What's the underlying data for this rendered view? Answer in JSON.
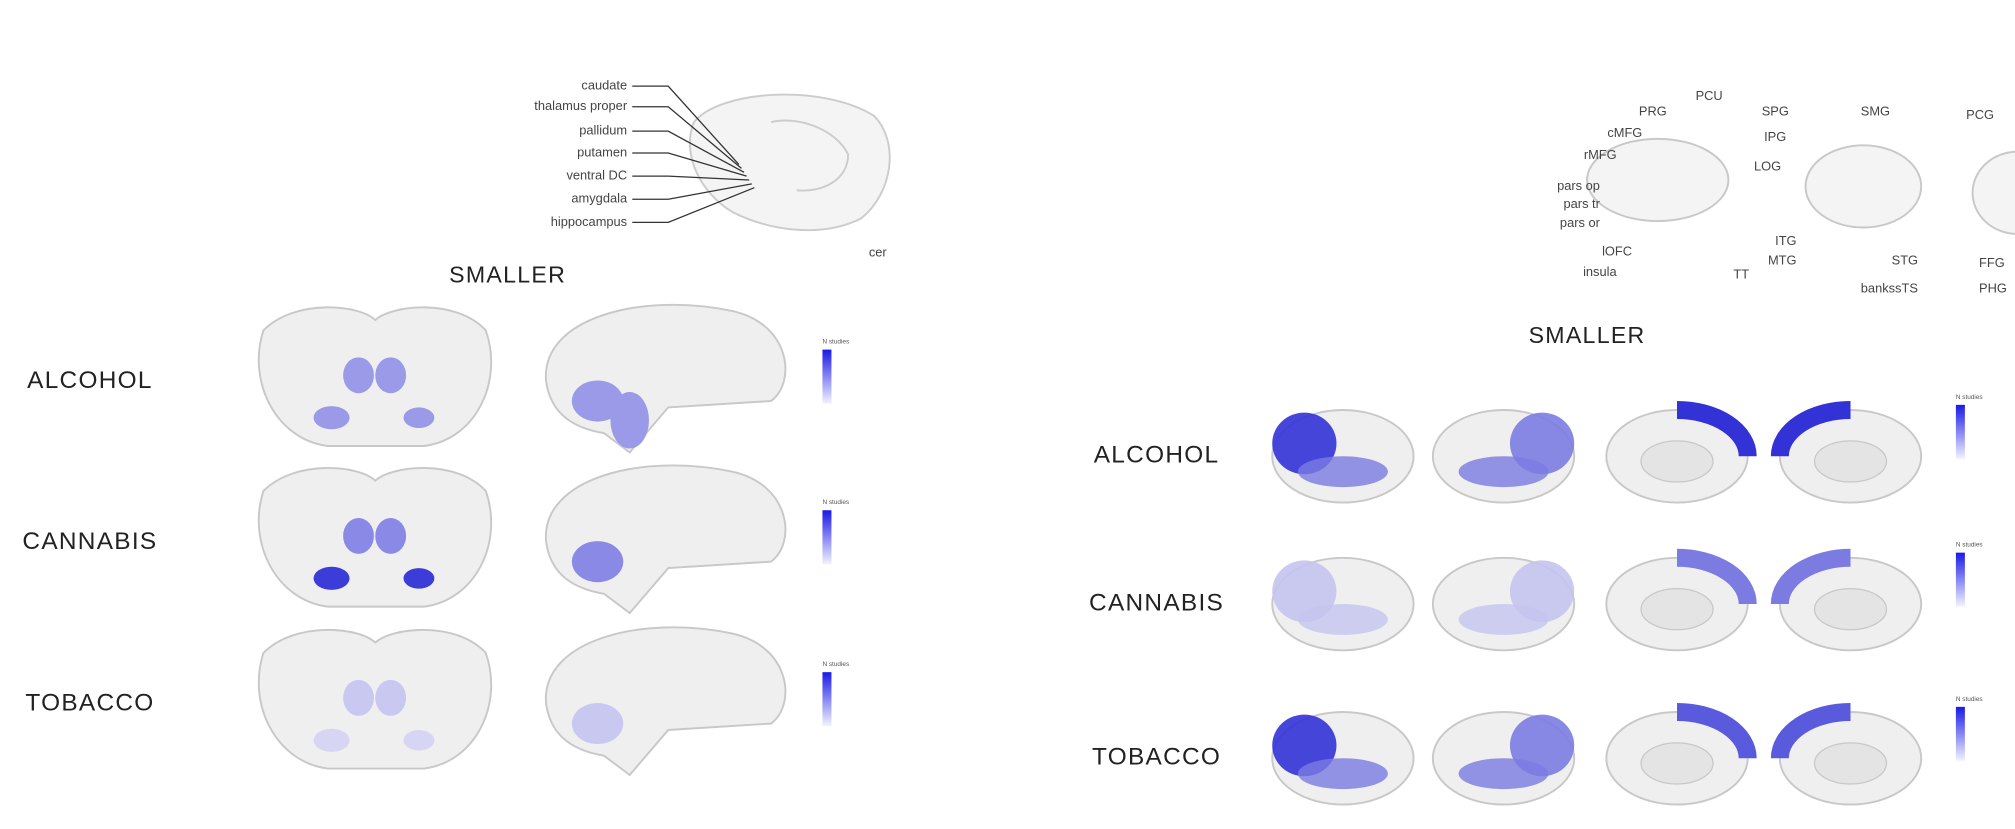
{
  "left": {
    "labels": [
      "caudate",
      "thalamus proper",
      "pallidum",
      "putamen",
      "ventral DC",
      "amygdala",
      "hippocampus"
    ],
    "truncated": "cer",
    "title": "SMALLER",
    "rows": [
      "ALCOHOL",
      "CANNABIS",
      "TOBACCO"
    ],
    "legend_title": "N studies"
  },
  "right": {
    "labels": [
      "PCU",
      "PRG",
      "cMFG",
      "rMFG",
      "pars op",
      "pars tr",
      "pars or",
      "lOFC",
      "insula",
      "TT",
      "SPG",
      "IPG",
      "LOG",
      "SMG",
      "ITG",
      "MTG",
      "STG",
      "bankssTS",
      "PCG",
      "FFG",
      "PHG"
    ],
    "title": "SMALLER",
    "rows": [
      "ALCOHOL",
      "CANNABIS",
      "TOBACCO"
    ],
    "legend_title": "N studies"
  }
}
